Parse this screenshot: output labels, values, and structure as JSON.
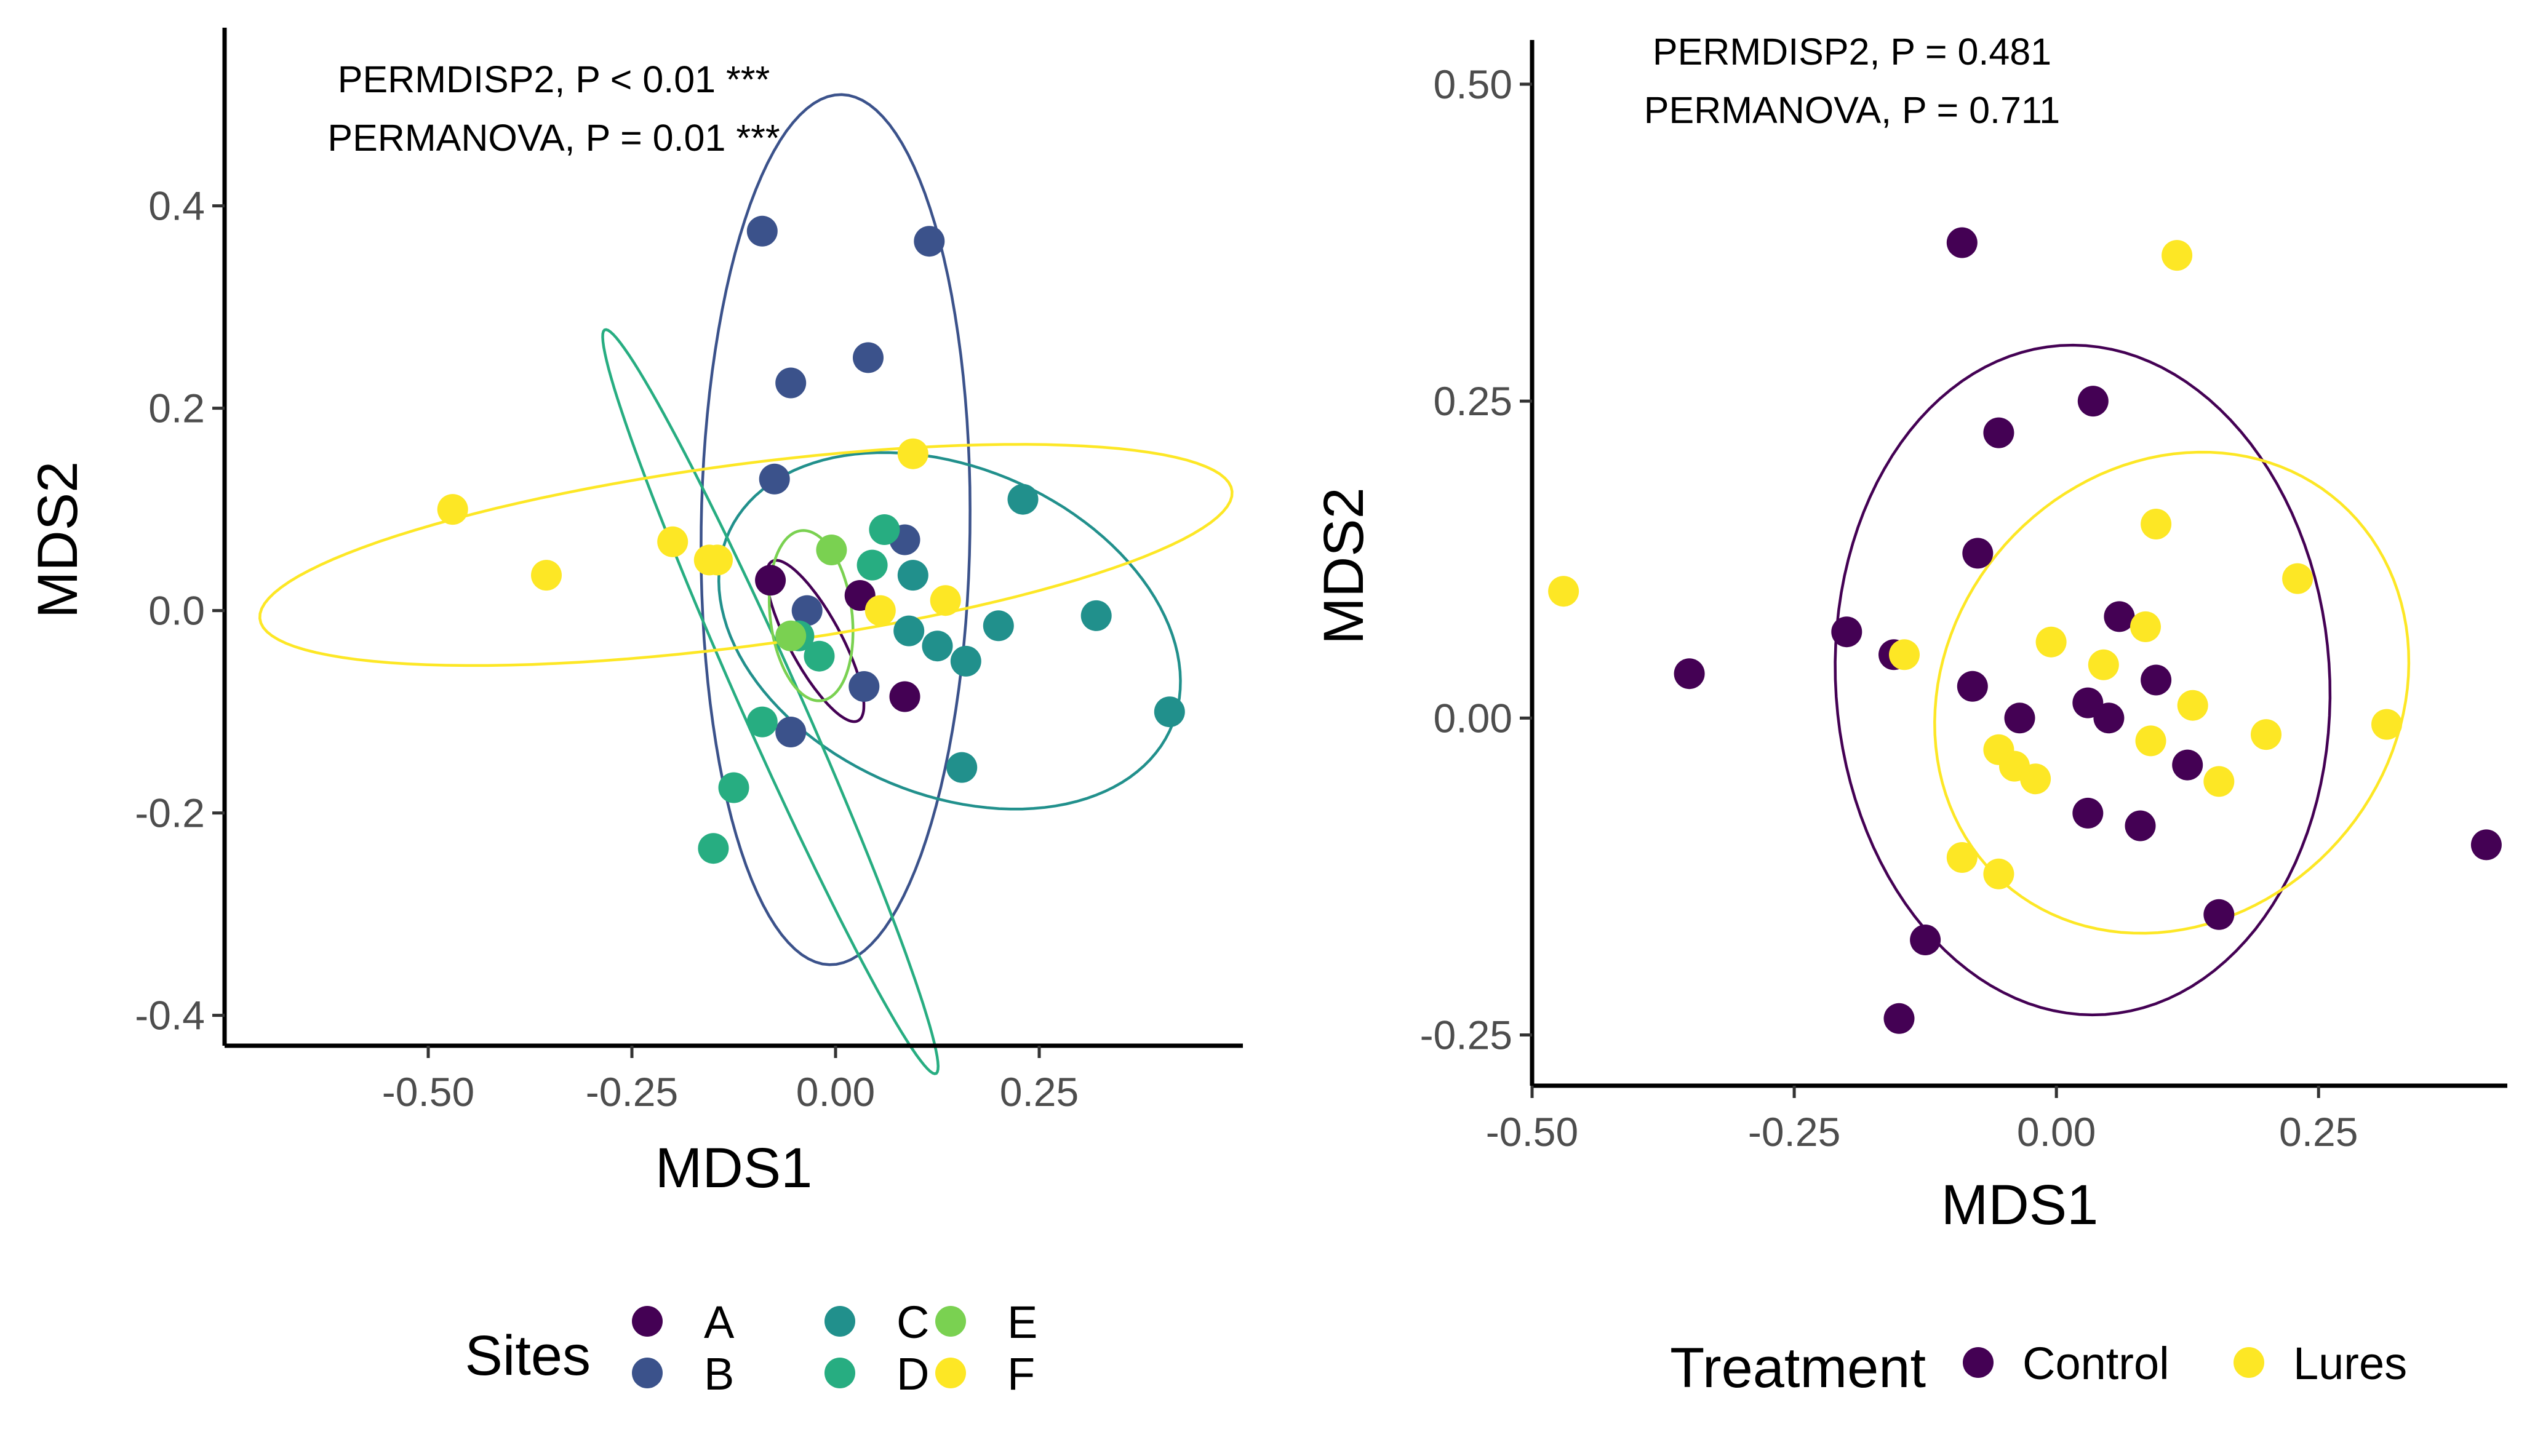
{
  "chart_data": [
    {
      "type": "scatter",
      "title": "",
      "xlabel": "MDS1",
      "ylabel": "MDS2",
      "xlim": [
        -0.75,
        0.5
      ],
      "ylim": [
        -0.43,
        0.57
      ],
      "x_ticks": [
        -0.5,
        -0.25,
        0.0,
        0.25
      ],
      "x_tick_labels": [
        "-0.50",
        "-0.25",
        "0.00",
        "0.25"
      ],
      "y_ticks": [
        -0.4,
        -0.2,
        0.0,
        0.2,
        0.4
      ],
      "y_tick_labels": [
        "-0.4",
        "-0.2",
        "0.0",
        "0.2",
        "0.4"
      ],
      "grid": false,
      "annotations": [
        "PERMDISP2, P < 0.01 ***",
        "PERMANOVA, P = 0.01 ***"
      ],
      "legend": {
        "title": "Sites",
        "position": "bottom"
      },
      "series": [
        {
          "name": "A",
          "color": "#440154",
          "points": [
            [
              -0.08,
              0.03
            ],
            [
              0.03,
              0.015
            ],
            [
              0.085,
              -0.085
            ]
          ],
          "ellipse": {
            "cx": -0.025,
            "cy": -0.03,
            "rx": 0.095,
            "ry": 0.03,
            "angle": -55
          }
        },
        {
          "name": "B",
          "color": "#3B528B",
          "points": [
            [
              -0.09,
              0.375
            ],
            [
              0.115,
              0.365
            ],
            [
              0.04,
              0.25
            ],
            [
              -0.055,
              0.225
            ],
            [
              -0.075,
              0.13
            ],
            [
              0.085,
              0.07
            ],
            [
              -0.035,
              0.0
            ],
            [
              0.035,
              -0.075
            ],
            [
              -0.055,
              -0.12
            ]
          ],
          "ellipse": {
            "cx": 0.0,
            "cy": 0.08,
            "rx": 0.43,
            "ry": 0.165,
            "angle": -91
          }
        },
        {
          "name": "C",
          "color": "#21908C",
          "points": [
            [
              0.23,
              0.11
            ],
            [
              0.095,
              0.035
            ],
            [
              0.32,
              -0.005
            ],
            [
              0.2,
              -0.015
            ],
            [
              0.09,
              -0.02
            ],
            [
              0.125,
              -0.035
            ],
            [
              0.16,
              -0.05
            ],
            [
              0.41,
              -0.1
            ],
            [
              0.155,
              -0.155
            ]
          ],
          "ellipse": {
            "cx": 0.14,
            "cy": -0.02,
            "rx": 0.29,
            "ry": 0.165,
            "angle": -15
          }
        },
        {
          "name": "D",
          "color": "#27AD81",
          "points": [
            [
              0.06,
              0.08
            ],
            [
              0.045,
              0.045
            ],
            [
              -0.045,
              -0.025
            ],
            [
              -0.02,
              -0.045
            ],
            [
              -0.09,
              -0.11
            ],
            [
              -0.125,
              -0.175
            ],
            [
              -0.15,
              -0.235
            ]
          ],
          "ellipse": {
            "cx": -0.08,
            "cy": -0.09,
            "rx": 0.42,
            "ry": 0.035,
            "angle": -61
          }
        },
        {
          "name": "E",
          "color": "#7AD151",
          "points": [
            [
              -0.005,
              0.06
            ],
            [
              -0.055,
              -0.025
            ]
          ],
          "ellipse": {
            "cx": -0.03,
            "cy": -0.005,
            "rx": 0.085,
            "ry": 0.05,
            "angle": -80
          }
        },
        {
          "name": "F",
          "color": "#FDE725",
          "points": [
            [
              -0.47,
              0.1
            ],
            [
              -0.355,
              0.035
            ],
            [
              -0.2,
              0.068
            ],
            [
              -0.155,
              0.05
            ],
            [
              -0.145,
              0.05
            ],
            [
              0.095,
              0.155
            ],
            [
              0.055,
              0.0
            ],
            [
              0.135,
              0.01
            ]
          ],
          "ellipse": {
            "cx": -0.11,
            "cy": 0.055,
            "rx": 0.6,
            "ry": 0.09,
            "angle": 6
          }
        }
      ]
    },
    {
      "type": "scatter",
      "title": "",
      "xlabel": "MDS1",
      "ylabel": "MDS2",
      "xlim": [
        -0.5,
        0.43
      ],
      "ylim": [
        -0.29,
        0.53
      ],
      "x_ticks": [
        -0.5,
        -0.25,
        0.0,
        0.25
      ],
      "x_tick_labels": [
        "-0.50",
        "-0.25",
        "0.00",
        "0.25"
      ],
      "y_ticks": [
        -0.25,
        0.0,
        0.25,
        0.5
      ],
      "y_tick_labels": [
        "-0.25",
        "0.00",
        "0.25",
        "0.50"
      ],
      "grid": false,
      "annotations": [
        "PERMDISP2, P = 0.481",
        "PERMANOVA, P = 0.711"
      ],
      "legend": {
        "title": "Treatment",
        "position": "bottom"
      },
      "series": [
        {
          "name": "Control",
          "color": "#440154",
          "points": [
            [
              -0.09,
              0.375
            ],
            [
              0.035,
              0.25
            ],
            [
              -0.055,
              0.225
            ],
            [
              -0.075,
              0.13
            ],
            [
              0.06,
              0.08
            ],
            [
              -0.2,
              0.068
            ],
            [
              -0.155,
              0.05
            ],
            [
              -0.35,
              0.035
            ],
            [
              -0.08,
              0.025
            ],
            [
              0.095,
              0.03
            ],
            [
              0.03,
              0.012
            ],
            [
              -0.035,
              0.0
            ],
            [
              0.05,
              0.0
            ],
            [
              0.125,
              -0.037
            ],
            [
              0.03,
              -0.075
            ],
            [
              0.08,
              -0.085
            ],
            [
              0.41,
              -0.1
            ],
            [
              0.155,
              -0.155
            ],
            [
              -0.125,
              -0.175
            ],
            [
              -0.15,
              -0.237
            ]
          ],
          "ellipse": {
            "cx": 0.025,
            "cy": 0.03,
            "rx": 0.265,
            "ry": 0.235,
            "angle": -80
          }
        },
        {
          "name": "Lures",
          "color": "#FDE725",
          "points": [
            [
              0.115,
              0.365
            ],
            [
              -0.47,
              0.1
            ],
            [
              0.095,
              0.153
            ],
            [
              0.23,
              0.11
            ],
            [
              0.085,
              0.072
            ],
            [
              -0.005,
              0.06
            ],
            [
              0.045,
              0.042
            ],
            [
              -0.145,
              0.05
            ],
            [
              0.13,
              0.01
            ],
            [
              0.2,
              -0.013
            ],
            [
              0.09,
              -0.018
            ],
            [
              0.315,
              -0.005
            ],
            [
              -0.055,
              -0.025
            ],
            [
              -0.04,
              -0.038
            ],
            [
              -0.02,
              -0.048
            ],
            [
              0.155,
              -0.05
            ],
            [
              -0.09,
              -0.11
            ],
            [
              -0.055,
              -0.123
            ]
          ],
          "ellipse": {
            "cx": 0.11,
            "cy": 0.02,
            "rx": 0.23,
            "ry": 0.185,
            "angle": 18
          }
        }
      ]
    }
  ]
}
